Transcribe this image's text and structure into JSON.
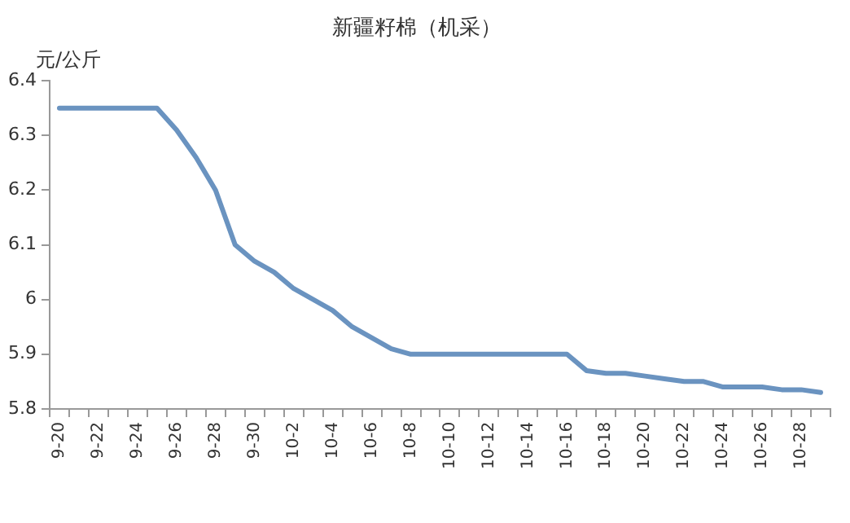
{
  "chart_data": {
    "type": "line",
    "title": "新疆籽棉（机采）",
    "ylabel": "元/公斤",
    "categories": [
      "9-20",
      null,
      "9-22",
      null,
      "9-24",
      null,
      "9-26",
      null,
      "9-28",
      null,
      "9-30",
      null,
      "10-2",
      null,
      "10-4",
      null,
      "10-6",
      null,
      "10-8",
      null,
      "10-10",
      null,
      "10-12",
      null,
      "10-14",
      null,
      "10-16",
      null,
      "10-18",
      null,
      "10-20",
      null,
      "10-22",
      null,
      "10-24",
      null,
      "10-26",
      null,
      "10-28",
      null
    ],
    "series": [
      {
        "color": "#6a93c0",
        "values": [
          6.35,
          6.35,
          6.35,
          6.35,
          6.35,
          6.35,
          6.31,
          6.26,
          6.2,
          6.1,
          6.07,
          6.05,
          6.02,
          6.0,
          5.98,
          5.95,
          5.93,
          5.91,
          5.9,
          5.9,
          5.9,
          5.9,
          5.9,
          5.9,
          5.9,
          5.9,
          5.9,
          5.87,
          5.865,
          5.865,
          5.86,
          5.855,
          5.85,
          5.85,
          5.84,
          5.84,
          5.84,
          5.835,
          5.835,
          5.83
        ]
      }
    ],
    "ylim": [
      5.8,
      6.4
    ],
    "yticks": [
      5.8,
      5.9,
      6,
      6.1,
      6.2,
      6.3,
      6.4
    ],
    "grid": false,
    "legend": false,
    "marker": "none",
    "line_style": "solid"
  }
}
